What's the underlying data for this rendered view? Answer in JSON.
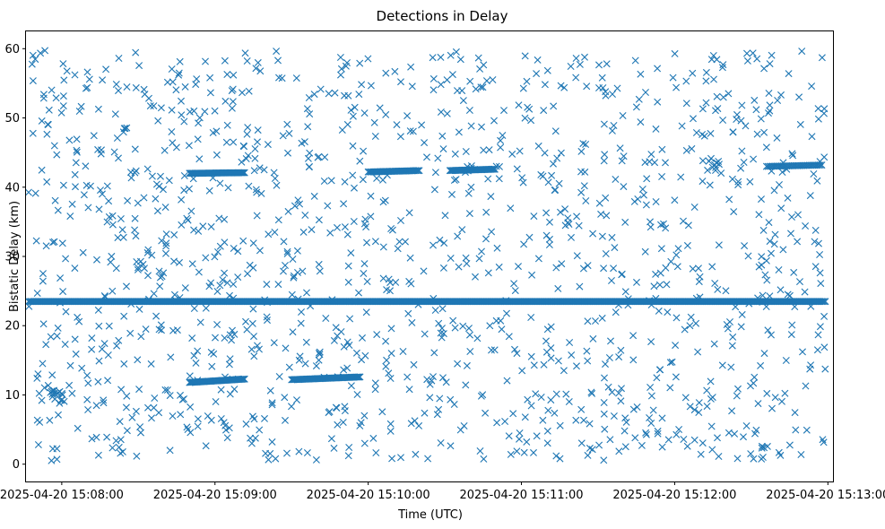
{
  "chart_data": {
    "type": "scatter",
    "title": "Detections in Delay",
    "xlabel": "Time (UTC)",
    "ylabel": "Bistatic Delay (km)",
    "marker": "x",
    "color": "#1f77b4",
    "grid": false,
    "legend": "none",
    "x_unit": "UTC time",
    "xlim": [
      "2025-04-20 15:07:46",
      "2025-04-20 15:13:02"
    ],
    "ylim": [
      -2.5,
      62.5
    ],
    "x_ticks": [
      "2025-04-20 15:08:00",
      "2025-04-20 15:09:00",
      "2025-04-20 15:10:00",
      "2025-04-20 15:11:00",
      "2025-04-20 15:12:00",
      "2025-04-20 15:13:00"
    ],
    "y_ticks": [
      0,
      10,
      20,
      30,
      40,
      50,
      60
    ],
    "tracks": [
      {
        "from": "2025-04-20 15:07:47",
        "to": "2025-04-20 15:12:59",
        "delay_start": 23.5,
        "delay_end": 23.5,
        "step_s": 0.5
      },
      {
        "from": "2025-04-20 15:08:50",
        "to": "2025-04-20 15:09:12",
        "delay_start": 11.8,
        "delay_end": 12.3,
        "step_s": 0.4
      },
      {
        "from": "2025-04-20 15:09:30",
        "to": "2025-04-20 15:09:57",
        "delay_start": 12.2,
        "delay_end": 12.6,
        "step_s": 0.4
      },
      {
        "from": "2025-04-20 15:08:50",
        "to": "2025-04-20 15:09:12",
        "delay_start": 42.0,
        "delay_end": 42.1,
        "step_s": 0.4
      },
      {
        "from": "2025-04-20 15:10:00",
        "to": "2025-04-20 15:10:20",
        "delay_start": 42.2,
        "delay_end": 42.4,
        "step_s": 0.5
      },
      {
        "from": "2025-04-20 15:10:32",
        "to": "2025-04-20 15:10:50",
        "delay_start": 42.4,
        "delay_end": 42.6,
        "step_s": 0.4
      },
      {
        "from": "2025-04-20 15:12:36",
        "to": "2025-04-20 15:12:58",
        "delay_start": 43.0,
        "delay_end": 43.2,
        "step_s": 0.6
      }
    ],
    "clusters": [
      {
        "at": "2025-04-20 15:07:58",
        "delay": 10.0,
        "count": 14
      },
      {
        "at": "2025-04-20 15:08:30",
        "delay": 28.5,
        "count": 6
      },
      {
        "at": "2025-04-20 15:12:15",
        "delay": 43.0,
        "count": 8
      },
      {
        "at": "2025-04-20 15:10:40",
        "delay": 42.7,
        "count": 6
      }
    ],
    "noise_points": 1350
  }
}
